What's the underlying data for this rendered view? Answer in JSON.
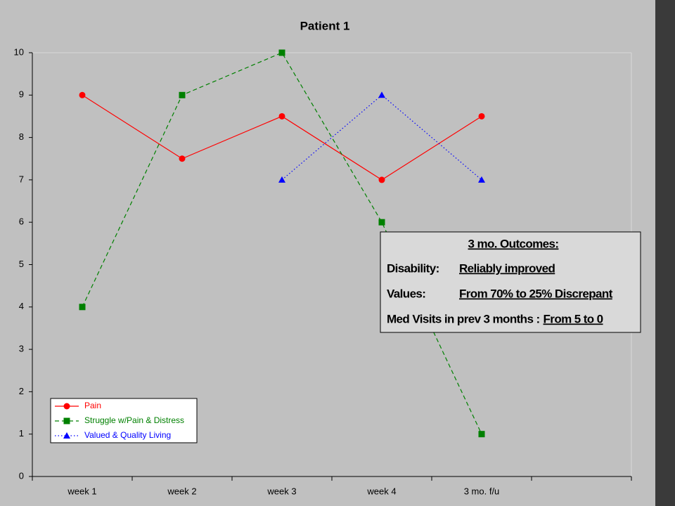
{
  "chart_data": {
    "type": "line",
    "title": "Patient 1",
    "categories": [
      "week 1",
      "week 2",
      "week 3",
      "week 4",
      "3 mo. f/u",
      null
    ],
    "series": [
      {
        "name": "Pain",
        "color": "#ff0000",
        "line_style": "solid",
        "marker": "circle",
        "values": [
          9,
          7.5,
          8.5,
          7,
          8.5,
          null
        ]
      },
      {
        "name": "Struggle w/Pain & Distress",
        "color": "#008000",
        "line_style": "dashed",
        "marker": "square",
        "values": [
          4,
          9,
          10,
          6,
          1,
          null
        ]
      },
      {
        "name": "Valued & Quality Living",
        "color": "#0000ff",
        "line_style": "dotted",
        "marker": "triangle",
        "values": [
          null,
          null,
          7,
          9,
          7,
          null
        ]
      }
    ],
    "ylim": [
      0,
      10
    ],
    "yticks": [
      0,
      1,
      2,
      3,
      4,
      5,
      6,
      7,
      8,
      9,
      10
    ],
    "grid": false,
    "legend": "lower left",
    "annotation": {
      "title": "3 mo. Outcomes:",
      "rows": [
        {
          "label": "Disability:",
          "value": "Reliably improved"
        },
        {
          "label": "Values:",
          "value": "From 70% to 25% Discrepant"
        },
        {
          "label": "Med Visits  in prev 3 months :",
          "value": "From 5 to 0"
        }
      ]
    }
  }
}
